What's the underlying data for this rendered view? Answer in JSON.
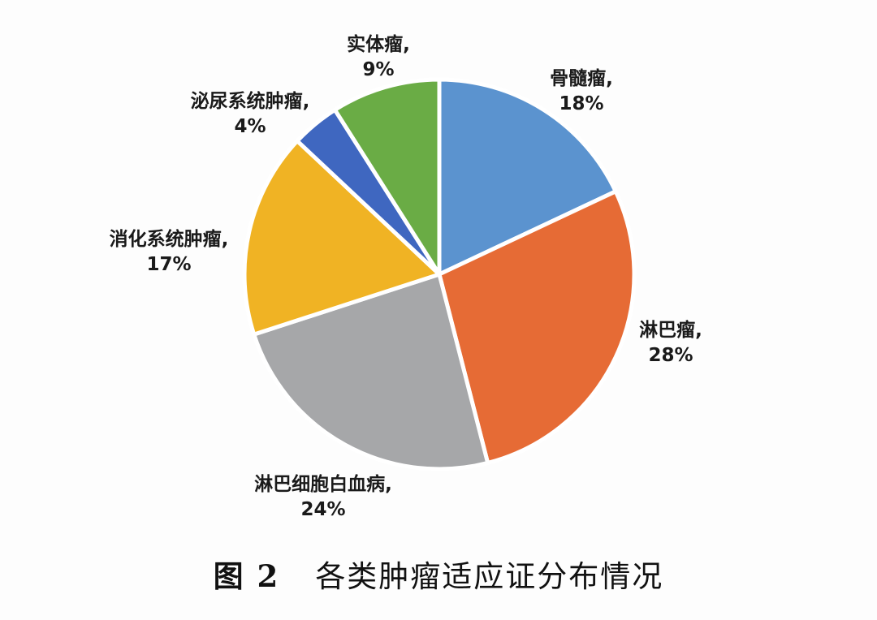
{
  "caption": {
    "figure_number": "图 2",
    "title": "各类肿瘤适应证分布情况"
  },
  "chart_data": {
    "type": "pie",
    "title": "",
    "start": "12 o'clock",
    "direction": "clockwise",
    "slices": [
      {
        "name": "骨髓瘤",
        "label": "骨髓瘤,",
        "value": 18,
        "value_label": "18%",
        "color": "#5b93cf"
      },
      {
        "name": "淋巴瘤",
        "label": "淋巴瘤,",
        "value": 28,
        "value_label": "28%",
        "color": "#e66b35"
      },
      {
        "name": "淋巴细胞白血病",
        "label": "淋巴细胞白血病,",
        "value": 24,
        "value_label": "24%",
        "color": "#a6a7a9"
      },
      {
        "name": "消化系统肿瘤",
        "label": "消化系统肿瘤,",
        "value": 17,
        "value_label": "17%",
        "color": "#f0b324"
      },
      {
        "name": "泌尿系统肿瘤",
        "label": "泌尿系统肿瘤,",
        "value": 4,
        "value_label": "4%",
        "color": "#3f67c0"
      },
      {
        "name": "实体瘤",
        "label": "实体瘤,",
        "value": 9,
        "value_label": "9%",
        "color": "#6aac45"
      }
    ]
  }
}
